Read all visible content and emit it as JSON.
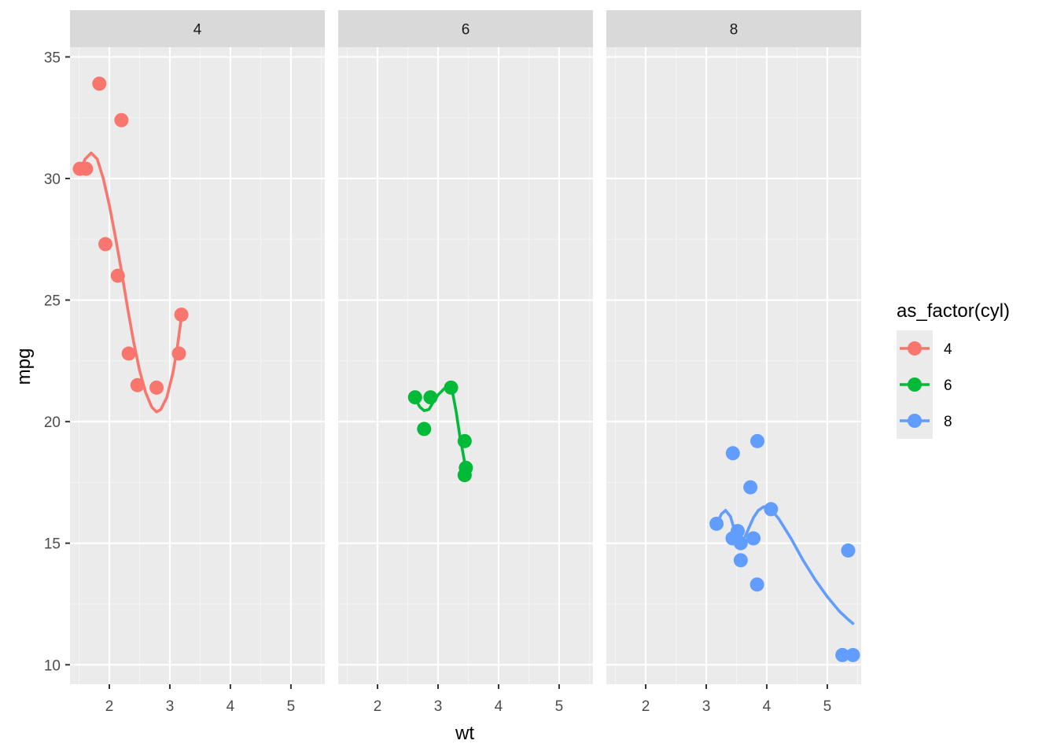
{
  "chart_data": {
    "type": "scatter",
    "facet_by": "cyl",
    "xlabel": "wt",
    "ylabel": "mpg",
    "xlim": [
      1.35,
      5.56
    ],
    "ylim": [
      9.2,
      35.4
    ],
    "x_ticks": [
      2,
      3,
      4,
      5
    ],
    "y_ticks": [
      10,
      15,
      20,
      25,
      30,
      35
    ],
    "grid": true,
    "legend": {
      "title": "as_factor(cyl)",
      "position": "right",
      "entries": [
        "4",
        "6",
        "8"
      ]
    },
    "panels": [
      {
        "label": "4",
        "color": "#F8766D",
        "points": [
          {
            "x": 2.32,
            "y": 22.8
          },
          {
            "x": 3.19,
            "y": 24.4
          },
          {
            "x": 3.15,
            "y": 22.8
          },
          {
            "x": 2.2,
            "y": 32.4
          },
          {
            "x": 1.615,
            "y": 30.4
          },
          {
            "x": 1.835,
            "y": 33.9
          },
          {
            "x": 2.465,
            "y": 21.5
          },
          {
            "x": 1.935,
            "y": 27.3
          },
          {
            "x": 2.14,
            "y": 26.0
          },
          {
            "x": 1.513,
            "y": 30.4
          },
          {
            "x": 2.78,
            "y": 21.4
          }
        ],
        "smooth": [
          {
            "x": 1.513,
            "y": 30.3
          },
          {
            "x": 1.6,
            "y": 30.8
          },
          {
            "x": 1.7,
            "y": 31.05
          },
          {
            "x": 1.8,
            "y": 30.8
          },
          {
            "x": 1.9,
            "y": 30.0
          },
          {
            "x": 2.0,
            "y": 28.9
          },
          {
            "x": 2.1,
            "y": 27.6
          },
          {
            "x": 2.2,
            "y": 26.2
          },
          {
            "x": 2.3,
            "y": 24.7
          },
          {
            "x": 2.4,
            "y": 23.3
          },
          {
            "x": 2.5,
            "y": 22.1
          },
          {
            "x": 2.6,
            "y": 21.2
          },
          {
            "x": 2.7,
            "y": 20.6
          },
          {
            "x": 2.78,
            "y": 20.4
          },
          {
            "x": 2.85,
            "y": 20.5
          },
          {
            "x": 2.95,
            "y": 21.0
          },
          {
            "x": 3.05,
            "y": 22.0
          },
          {
            "x": 3.12,
            "y": 23.0
          },
          {
            "x": 3.19,
            "y": 24.3
          }
        ]
      },
      {
        "label": "6",
        "color": "#00BA38",
        "points": [
          {
            "x": 2.62,
            "y": 21.0
          },
          {
            "x": 2.875,
            "y": 21.0
          },
          {
            "x": 3.215,
            "y": 21.4
          },
          {
            "x": 3.46,
            "y": 18.1
          },
          {
            "x": 3.44,
            "y": 19.2
          },
          {
            "x": 3.44,
            "y": 17.8
          },
          {
            "x": 2.77,
            "y": 19.7
          }
        ],
        "smooth": [
          {
            "x": 2.62,
            "y": 20.95
          },
          {
            "x": 2.7,
            "y": 20.6
          },
          {
            "x": 2.77,
            "y": 20.45
          },
          {
            "x": 2.85,
            "y": 20.5
          },
          {
            "x": 2.92,
            "y": 20.8
          },
          {
            "x": 3.0,
            "y": 21.1
          },
          {
            "x": 3.1,
            "y": 21.35
          },
          {
            "x": 3.18,
            "y": 21.45
          },
          {
            "x": 3.24,
            "y": 21.2
          },
          {
            "x": 3.3,
            "y": 20.4
          },
          {
            "x": 3.36,
            "y": 19.4
          },
          {
            "x": 3.42,
            "y": 18.6
          },
          {
            "x": 3.46,
            "y": 18.0
          }
        ]
      },
      {
        "label": "8",
        "color": "#619CFF",
        "points": [
          {
            "x": 3.44,
            "y": 18.7
          },
          {
            "x": 3.46,
            "y": 15.2
          },
          {
            "x": 3.57,
            "y": 14.3
          },
          {
            "x": 3.73,
            "y": 17.3
          },
          {
            "x": 3.78,
            "y": 15.2
          },
          {
            "x": 3.57,
            "y": 15.0
          },
          {
            "x": 3.52,
            "y": 15.5
          },
          {
            "x": 3.435,
            "y": 15.2
          },
          {
            "x": 3.84,
            "y": 13.3
          },
          {
            "x": 3.845,
            "y": 19.2
          },
          {
            "x": 3.17,
            "y": 15.8
          },
          {
            "x": 4.07,
            "y": 16.4
          },
          {
            "x": 5.25,
            "y": 10.4
          },
          {
            "x": 5.424,
            "y": 10.4
          },
          {
            "x": 5.345,
            "y": 14.7
          }
        ],
        "smooth": [
          {
            "x": 3.17,
            "y": 15.75
          },
          {
            "x": 3.25,
            "y": 16.2
          },
          {
            "x": 3.32,
            "y": 16.35
          },
          {
            "x": 3.4,
            "y": 16.1
          },
          {
            "x": 3.46,
            "y": 15.6
          },
          {
            "x": 3.52,
            "y": 15.2
          },
          {
            "x": 3.57,
            "y": 15.05
          },
          {
            "x": 3.63,
            "y": 15.2
          },
          {
            "x": 3.7,
            "y": 15.6
          },
          {
            "x": 3.78,
            "y": 16.05
          },
          {
            "x": 3.86,
            "y": 16.35
          },
          {
            "x": 3.95,
            "y": 16.5
          },
          {
            "x": 4.05,
            "y": 16.45
          },
          {
            "x": 4.2,
            "y": 16.0
          },
          {
            "x": 4.4,
            "y": 15.2
          },
          {
            "x": 4.6,
            "y": 14.3
          },
          {
            "x": 4.8,
            "y": 13.5
          },
          {
            "x": 5.0,
            "y": 12.8
          },
          {
            "x": 5.2,
            "y": 12.2
          },
          {
            "x": 5.35,
            "y": 11.85
          },
          {
            "x": 5.424,
            "y": 11.7
          }
        ]
      }
    ]
  }
}
